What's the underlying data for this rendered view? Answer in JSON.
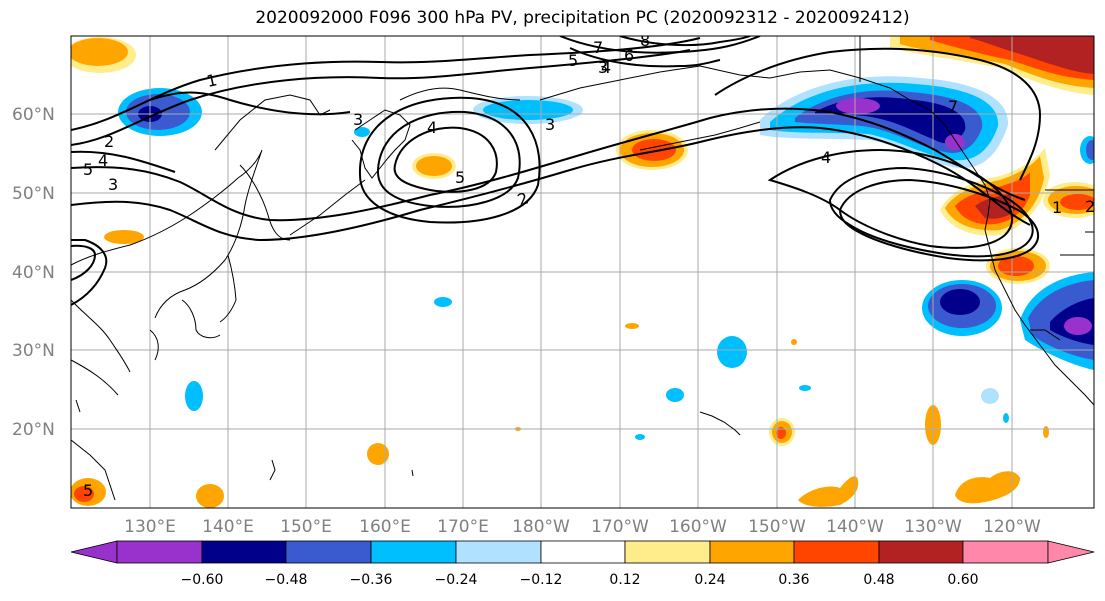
{
  "title": "2020092000 F096 300 hPa PV, precipitation PC (2020092312 - 2020092412)",
  "lat_labels": [
    "60°N",
    "50°N",
    "40°N",
    "30°N",
    "20°N"
  ],
  "lon_labels": [
    "130°E",
    "140°E",
    "150°E",
    "160°E",
    "170°E",
    "180°W",
    "170°W",
    "160°W",
    "150°W",
    "140°W",
    "130°W",
    "120°W"
  ],
  "contour_labels": [
    "1",
    "2",
    "2",
    "3",
    "3",
    "3",
    "4",
    "4",
    "4",
    "5",
    "5",
    "5",
    "6",
    "7",
    "8",
    "1",
    "2",
    "3",
    "4",
    "5",
    "7"
  ],
  "colorbar": {
    "ticks": [
      "−0.60",
      "−0.48",
      "−0.36",
      "−0.24",
      "−0.12",
      "0.12",
      "0.24",
      "0.36",
      "0.48",
      "0.60"
    ],
    "colors": [
      "#9932cc",
      "#00008b",
      "#3a5bd0",
      "#00bfff",
      "#b0e2ff",
      "#ffffff",
      "#ffec8b",
      "#ffa500",
      "#ff4500",
      "#b22222",
      "#ff88aa"
    ]
  }
}
